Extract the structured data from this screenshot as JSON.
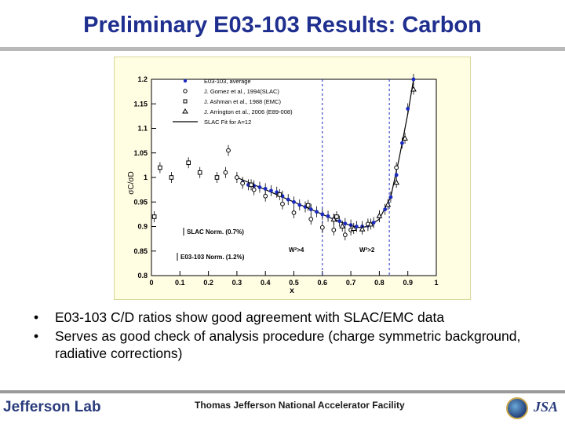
{
  "slide": {
    "title": "Preliminary E03-103 Results: Carbon",
    "bullets": [
      "E03-103 C/D ratios show good agreement with SLAC/EMC data",
      "Serves as good check of analysis procedure (charge symmetric background, radiative corrections)"
    ],
    "bullet_symbol": "•"
  },
  "footer": {
    "logo_text": "Jefferson Lab",
    "facility": "Thomas Jefferson National Accelerator Facility",
    "jsa": "JSA"
  },
  "chart_data": {
    "type": "scatter",
    "xlabel": "x",
    "ylabel": "σC/σD",
    "xlim": [
      0,
      1
    ],
    "ylim": [
      0.8,
      1.2
    ],
    "xticks": [
      "0",
      "0.1",
      "0.2",
      "0.3",
      "0.4",
      "0.5",
      "0.6",
      "0.7",
      "0.8",
      "0.9",
      "1"
    ],
    "yticks": [
      "0.8",
      "0.85",
      "0.9",
      "0.95",
      "1",
      "1.05",
      "1.1",
      "1.15",
      "1.2"
    ],
    "grid": false,
    "legend_position": "top-left",
    "series": [
      {
        "name": "E03-103, average",
        "marker": "filled-circle",
        "color": "#1b2bbf",
        "points": [
          [
            0.32,
            0.99
          ],
          [
            0.34,
            0.985
          ],
          [
            0.36,
            0.983
          ],
          [
            0.38,
            0.98
          ],
          [
            0.4,
            0.977
          ],
          [
            0.42,
            0.973
          ],
          [
            0.44,
            0.97
          ],
          [
            0.46,
            0.962
          ],
          [
            0.48,
            0.955
          ],
          [
            0.5,
            0.95
          ],
          [
            0.52,
            0.944
          ],
          [
            0.54,
            0.94
          ],
          [
            0.56,
            0.935
          ],
          [
            0.58,
            0.93
          ],
          [
            0.6,
            0.925
          ],
          [
            0.62,
            0.921
          ],
          [
            0.64,
            0.915
          ],
          [
            0.66,
            0.911
          ],
          [
            0.68,
            0.906
          ],
          [
            0.7,
            0.903
          ],
          [
            0.72,
            0.9
          ],
          [
            0.74,
            0.9
          ],
          [
            0.76,
            0.902
          ],
          [
            0.78,
            0.908
          ],
          [
            0.8,
            0.92
          ],
          [
            0.82,
            0.935
          ],
          [
            0.84,
            0.96
          ],
          [
            0.86,
            1.005
          ],
          [
            0.88,
            1.07
          ],
          [
            0.9,
            1.14
          ],
          [
            0.92,
            1.2
          ]
        ]
      },
      {
        "name": "J. Gomez et al., 1994(SLAC)",
        "marker": "open-circle",
        "points": [
          [
            0.26,
            1.01
          ],
          [
            0.27,
            1.055
          ],
          [
            0.3,
            1.0
          ],
          [
            0.32,
            0.988
          ],
          [
            0.36,
            0.975
          ],
          [
            0.4,
            0.962
          ],
          [
            0.46,
            0.946
          ],
          [
            0.5,
            0.928
          ],
          [
            0.56,
            0.915
          ],
          [
            0.6,
            0.898
          ],
          [
            0.64,
            0.893
          ],
          [
            0.68,
            0.883
          ],
          [
            0.7,
            0.893
          ],
          [
            0.76,
            0.905
          ],
          [
            0.86,
            1.02
          ],
          [
            0.92,
            1.22
          ]
        ]
      },
      {
        "name": "J. Ashman et al., 1988 (EMC)",
        "marker": "open-square",
        "points": [
          [
            0.01,
            0.92
          ],
          [
            0.03,
            1.02
          ],
          [
            0.07,
            1.0
          ],
          [
            0.13,
            1.03
          ],
          [
            0.17,
            1.01
          ],
          [
            0.23,
            1.0
          ],
          [
            0.35,
            0.985
          ],
          [
            0.45,
            0.965
          ],
          [
            0.55,
            0.943
          ],
          [
            0.65,
            0.92
          ]
        ]
      },
      {
        "name": "J. Arrington et al., 2006 (E89-008)",
        "marker": "open-triangle",
        "points": [
          [
            0.64,
            0.915
          ],
          [
            0.67,
            0.901
          ],
          [
            0.71,
            0.896
          ],
          [
            0.74,
            0.895
          ],
          [
            0.77,
            0.905
          ],
          [
            0.8,
            0.922
          ],
          [
            0.83,
            0.945
          ],
          [
            0.86,
            0.99
          ],
          [
            0.89,
            1.08
          ],
          [
            0.92,
            1.18
          ]
        ]
      },
      {
        "name": "SLAC Fit for A=12",
        "marker": "line",
        "points": [
          [
            0.3,
            1.0
          ],
          [
            0.4,
            0.975
          ],
          [
            0.5,
            0.95
          ],
          [
            0.6,
            0.925
          ],
          [
            0.65,
            0.912
          ],
          [
            0.7,
            0.902
          ],
          [
            0.73,
            0.898
          ],
          [
            0.76,
            0.9
          ],
          [
            0.8,
            0.915
          ],
          [
            0.84,
            0.96
          ],
          [
            0.87,
            1.04
          ],
          [
            0.9,
            1.13
          ],
          [
            0.92,
            1.2
          ]
        ]
      }
    ],
    "annotations": [
      {
        "text": "SLAC Norm. (0.7%)"
      },
      {
        "text": "E03-103 Norm. (1.2%)"
      },
      {
        "text": "W²>4"
      },
      {
        "text": "W²>2"
      }
    ],
    "reference_lines": [
      {
        "label": "W²>4",
        "x": 0.6
      },
      {
        "label": "W²>2",
        "x": 0.835
      }
    ]
  }
}
